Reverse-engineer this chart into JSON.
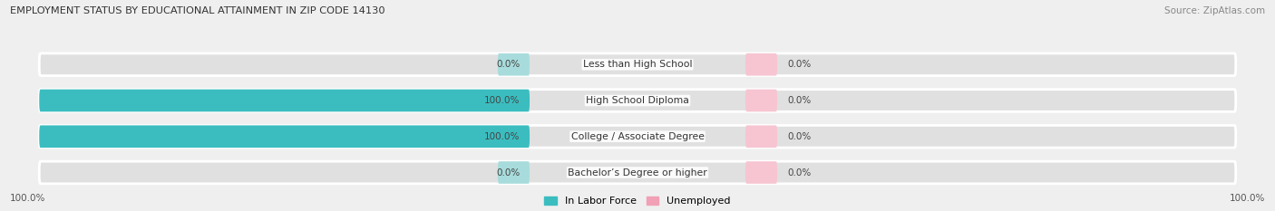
{
  "title": "EMPLOYMENT STATUS BY EDUCATIONAL ATTAINMENT IN ZIP CODE 14130",
  "source": "Source: ZipAtlas.com",
  "categories": [
    "Less than High School",
    "High School Diploma",
    "College / Associate Degree",
    "Bachelor’s Degree or higher"
  ],
  "labor_force": [
    0.0,
    100.0,
    100.0,
    0.0
  ],
  "unemployed": [
    0.0,
    0.0,
    0.0,
    0.0
  ],
  "labor_force_color": "#3BBDC0",
  "labor_force_color_light": "#A8DCDC",
  "unemployed_color": "#F2A0B5",
  "unemployed_color_light": "#F7C5D2",
  "bg_color": "#EFEFEF",
  "bar_bg_color": "#E0E0E0",
  "bar_height": 0.62,
  "max_val": 100.0,
  "legend_labor": "In Labor Force",
  "legend_unemployed": "Unemployed",
  "bottom_left_label": "100.0%",
  "bottom_right_label": "100.0%"
}
